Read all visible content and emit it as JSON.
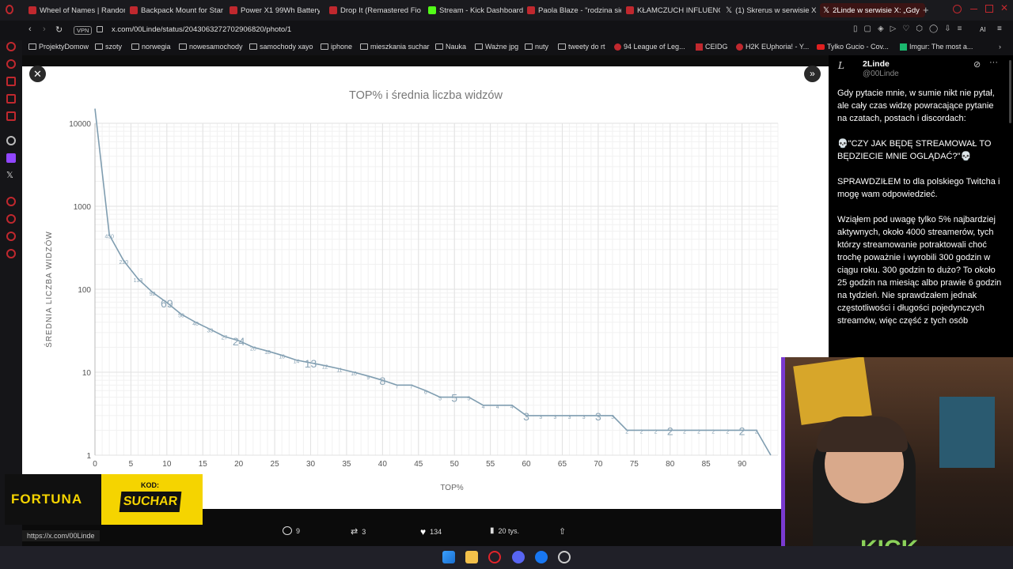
{
  "tabs": [
    {
      "label": "Wheel of Names | Random",
      "color": "#c0282e"
    },
    {
      "label": "Backpack Mount for Star",
      "color": "#c0282e"
    },
    {
      "label": "Power X1 99Wh Battery |",
      "color": "#c0282e"
    },
    {
      "label": "Drop It (Remastered Fioc",
      "color": "#c0282e"
    },
    {
      "label": "Stream - Kick Dashboard",
      "color": "#53fc18"
    },
    {
      "label": "Paola Blaze - \"rodzina się",
      "color": "#c0282e"
    },
    {
      "label": "KŁAMCZUCH INFLUENCE",
      "color": "#c0282e"
    },
    {
      "label": "(1) Skrerus w serwisie X",
      "color": "#ffffff"
    },
    {
      "label": "2Linde w serwisie X: „Gdy",
      "color": "#ffffff"
    }
  ],
  "address": {
    "vpn": "VPN",
    "url": "x.com/00Linde/status/2043063272702906820/photo/1"
  },
  "bookmarks": [
    "ProjektyDomow",
    "szoty",
    "norwegia",
    "nowesamochody",
    "samochody xayo",
    "iphone",
    "mieszkania suchar",
    "Nauka",
    "Ważne jpg",
    "nuty",
    "tweety do rt",
    "94 League of Leg...",
    "CEIDG",
    "H2K EUphoria! - Y...",
    "Tylko Gucio - Cov...",
    "Imgur: The most a..."
  ],
  "chart_data": {
    "type": "line",
    "title": "TOP% i średnia liczba widzów",
    "xlabel": "TOP%",
    "ylabel": "ŚREDNIA LICZBA WIDZÓW",
    "y_scale": "log",
    "ylim": [
      1,
      10000
    ],
    "xlim": [
      0,
      95
    ],
    "x_ticks": [
      "0",
      "5",
      "10",
      "15",
      "20",
      "25",
      "30",
      "35",
      "40",
      "45",
      "50",
      "55",
      "60",
      "65",
      "70",
      "75",
      "80",
      "85",
      "90"
    ],
    "y_ticks": [
      "1",
      "10",
      "100",
      "1000",
      "10000"
    ],
    "x": [
      0,
      2,
      4,
      6,
      8,
      10,
      12,
      14,
      16,
      18,
      20,
      22,
      24,
      26,
      28,
      30,
      32,
      34,
      36,
      38,
      40,
      42,
      44,
      46,
      48,
      50,
      52,
      54,
      56,
      58,
      60,
      62,
      64,
      66,
      68,
      70,
      72,
      74,
      76,
      78,
      80,
      82,
      84,
      86,
      88,
      90,
      92,
      94
    ],
    "y": [
      15000,
      450,
      220,
      133,
      92,
      69,
      50,
      40,
      33,
      27,
      24,
      20,
      18,
      16,
      14,
      13,
      12,
      11,
      10,
      9,
      8,
      7,
      7,
      6,
      5,
      5,
      5,
      4,
      4,
      4,
      3,
      3,
      3,
      3,
      3,
      3,
      3,
      2,
      2,
      2,
      2,
      2,
      2,
      2,
      2,
      2,
      2,
      1
    ],
    "labels": [
      "",
      "450",
      "220",
      "133",
      "92",
      "69",
      "50",
      "40",
      "33",
      "27",
      "24",
      "20",
      "18",
      "16",
      "14",
      "13",
      "12",
      "11",
      "10",
      "9",
      "8",
      "7",
      "7",
      "6",
      "5",
      "5",
      "5",
      "4",
      "4",
      "4",
      "3",
      "3",
      "3",
      "3",
      "3",
      "3",
      "3",
      "2",
      "2",
      "2",
      "2",
      "2",
      "2",
      "2",
      "2",
      "2",
      "2",
      ""
    ],
    "big_labels": [
      "69",
      "24",
      "13",
      "8",
      "5",
      "3",
      "3",
      "2",
      "2"
    ],
    "line_color": "#7f9db0",
    "grid": true
  },
  "tweet": {
    "author": "2Linde",
    "handle": "@00Linde",
    "p1": "Gdy pytacie mnie, w sumie nikt nie pytał, ale cały czas widzę powracające pytanie na czatach, postach i discordach:",
    "p2": "💀\"CZY JAK BĘDĘ STREAMOWAŁ TO BĘDZIECIE MNIE OGLĄDAĆ?\"💀",
    "p3": "SPRAWDZIŁEM to dla polskiego Twitcha i mogę wam odpowiedzieć.",
    "p4": "Wziąłem pod uwagę tylko 5% najbardziej aktywnych, około 4000 streamerów, tych którzy streamowanie potraktowali choć trochę poważnie i wyrobili 300 godzin w ciągu roku. 300 godzin to dużo? To około 25 godzin na miesiąc albo prawie 6 godzin na tydzień. Nie sprawdzałem jednak częstotliwości i długości pojedynczych streamów, więc część z tych osób"
  },
  "actions": {
    "replies": "9",
    "reposts": "3",
    "likes": "134",
    "views": "20 tys."
  },
  "status_url": "https://x.com/00Linde",
  "sponsor": {
    "brand": "FORTUNA",
    "code_label": "KOD:",
    "code": "SUCHAR"
  }
}
